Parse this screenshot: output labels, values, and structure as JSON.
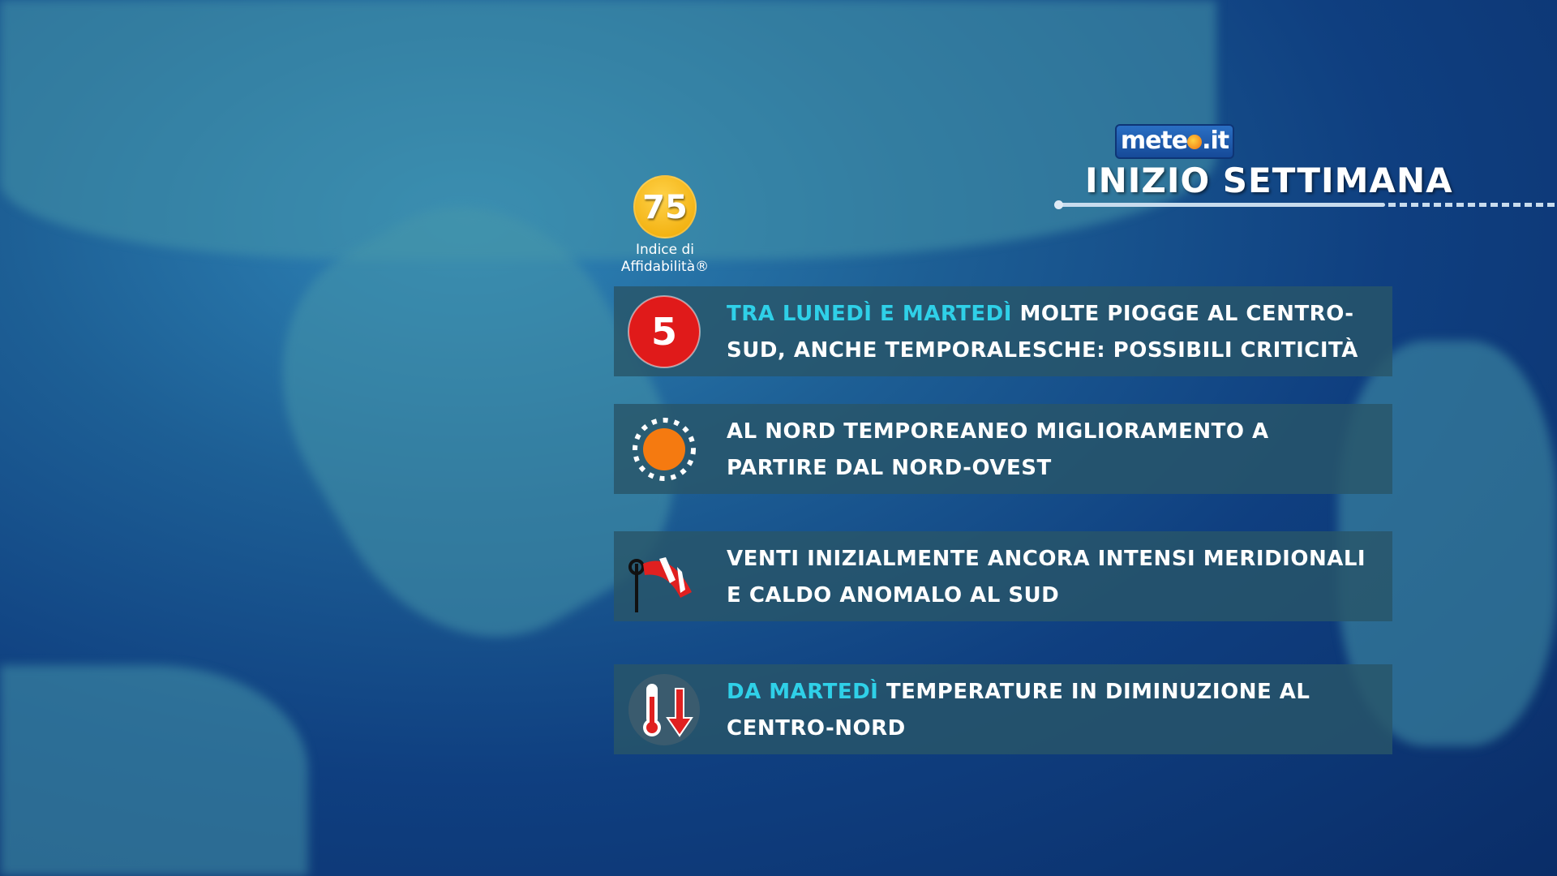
{
  "logo": {
    "text_a": "mete",
    "text_b": ".it"
  },
  "header": {
    "title": "INIZIO SETTIMANA"
  },
  "reliability": {
    "value": "75",
    "label_line1": "Indice di",
    "label_line2": "Affidabilità®"
  },
  "items": [
    {
      "icon": "risk-level-5-icon",
      "icon_text": "5",
      "highlight": "TRA LUNEDÌ E MARTEDÌ",
      "text": " MOLTE PIOGGE AL CENTRO-SUD, ANCHE TEMPORALESCHE: POSSIBILI CRITICITÀ"
    },
    {
      "icon": "sun-icon",
      "highlight": "",
      "text": "AL NORD TEMPOREANEO MIGLIORAMENTO A PARTIRE DAL NORD-OVEST"
    },
    {
      "icon": "windsock-icon",
      "highlight": "",
      "text": "VENTI INIZIALMENTE ANCORA INTENSI MERIDIONALI E CALDO ANOMALO AL SUD"
    },
    {
      "icon": "thermometer-down-icon",
      "highlight": "DA MARTEDÌ",
      "text": " TEMPERATURE IN DIMINUZIONE AL CENTRO-NORD"
    }
  ]
}
